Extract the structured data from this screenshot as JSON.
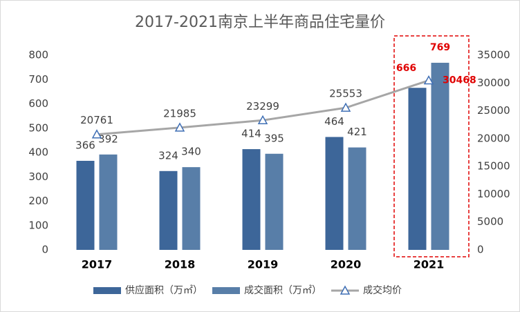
{
  "chart_data": {
    "type": "bar-line",
    "title": "2017-2021南京上半年商品住宅量价",
    "categories": [
      "2017",
      "2018",
      "2019",
      "2020",
      "2021"
    ],
    "series": [
      {
        "name": "供应面积（万㎡）",
        "type": "bar",
        "color": "#3d6699",
        "values": [
          366,
          324,
          414,
          464,
          666
        ]
      },
      {
        "name": "成交面积（万㎡）",
        "type": "bar",
        "color": "#587ea8",
        "values": [
          392,
          340,
          395,
          421,
          769
        ]
      },
      {
        "name": "成交均价",
        "type": "line",
        "axis": "y2",
        "color": "#a6a6a6",
        "values": [
          20761,
          21985,
          23299,
          25553,
          30468
        ]
      }
    ],
    "ylim": [
      0,
      800
    ],
    "yticks": [
      0,
      100,
      200,
      300,
      400,
      500,
      600,
      700,
      800
    ],
    "y2lim": [
      0,
      35000
    ],
    "y2ticks": [
      0,
      5000,
      10000,
      15000,
      20000,
      25000,
      30000,
      35000
    ]
  }
}
